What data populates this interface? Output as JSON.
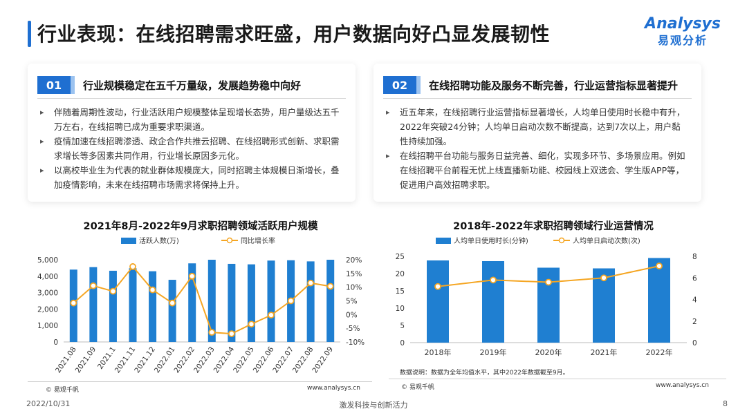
{
  "header": {
    "title": "行业表现：在线招聘需求旺盛，用户数据向好凸显发展韧性",
    "logo_en": "Analysys",
    "logo_cn": "易观分析"
  },
  "cards": [
    {
      "num": "01",
      "title": "行业规模稳定在五千万量级，发展趋势稳中向好",
      "bullets": [
        "伴随着周期性波动，行业活跃用户规模整体呈现增长态势，用户量级达五千万左右，在线招聘已成为重要求职渠道。",
        "疫情加速在线招聘渗透、政企合作共推云招聘、在线招聘形式创新、求职需求增长等多因素共同作用，行业增长原因多元化。",
        "以高校毕业生为代表的就业群体规模庞大，同时招聘主体规模日渐增长，叠加疫情影响，未来在线招聘市场需求将保持上升。"
      ]
    },
    {
      "num": "02",
      "title": "在线招聘功能及服务不断完善，行业运营指标显著提升",
      "bullets": [
        "近五年来，在线招聘行业运营指标显著增长，人均单日使用时长稳中有升，2022年突破24分钟；人均单日启动次数不断提高，达到7次以上，用户黏性持续加强。",
        "在线招聘平台功能与服务日益完善、细化，实现多环节、多场景应用。例如在线招聘平台前程无忧上线直播新功能、校园线上双选会、学生版APP等，促进用户高效招聘求职。"
      ]
    }
  ],
  "chart_data": [
    {
      "type": "bar+line",
      "title": "2021年8月-2022年9月求职招聘领域活跃用户规模",
      "categories": [
        "2021.08",
        "2021.09",
        "2021.1",
        "2021.11",
        "2021.12",
        "2022.01",
        "2022.02",
        "2022.03",
        "2022.04",
        "2022.05",
        "2022.06",
        "2022.07",
        "2022.08",
        "2022.09"
      ],
      "series": [
        {
          "name": "活跃人数(万)",
          "type": "bar",
          "axis": "left",
          "color": "#1f7fd1",
          "values": [
            4400,
            4550,
            4330,
            4480,
            4300,
            3780,
            4780,
            5000,
            4750,
            4720,
            4950,
            4970,
            4900,
            5000
          ]
        },
        {
          "name": "同比增长率",
          "type": "line",
          "axis": "right",
          "color": "#f5a623",
          "values": [
            4.2,
            10.5,
            8.5,
            17.5,
            9.0,
            4.2,
            14.0,
            -6.5,
            -7.0,
            -3.5,
            -0.2,
            5.0,
            11.5,
            10.3
          ]
        }
      ],
      "left_axis": {
        "min": 0,
        "max": 5000,
        "ticks": [
          "0",
          "1,000",
          "2,000",
          "3,000",
          "4,000",
          "5,000"
        ]
      },
      "right_axis": {
        "min": -10,
        "max": 20,
        "ticks": [
          "-10%",
          "-5%",
          "0%",
          "5%",
          "10%",
          "15%",
          "20%"
        ]
      },
      "source": "© 易观千帆",
      "site": "www.analysys.cn"
    },
    {
      "type": "bar+line",
      "title": "2018年-2022年求职招聘领域行业运营情况",
      "categories": [
        "2018年",
        "2019年",
        "2020年",
        "2021年",
        "2022年"
      ],
      "series": [
        {
          "name": "人均单日使用时长(分钟)",
          "type": "bar",
          "axis": "left",
          "color": "#1f7fd1",
          "values": [
            23.8,
            23.6,
            21.7,
            21.5,
            24.5
          ]
        },
        {
          "name": "人均单日启动次数(次)",
          "type": "line",
          "axis": "right",
          "color": "#f5a623",
          "values": [
            5.2,
            5.8,
            5.6,
            6.0,
            7.1
          ]
        }
      ],
      "left_axis": {
        "min": 0,
        "max": 25,
        "ticks": [
          "0",
          "5",
          "10",
          "15",
          "20",
          "25"
        ]
      },
      "right_axis": {
        "min": 0,
        "max": 8,
        "ticks": [
          "0",
          "2",
          "4",
          "6",
          "8"
        ]
      },
      "note": "数据说明：数据为全年均值水平，其中2022年数据截至9月。",
      "source": "© 易观千帆",
      "site": "www.analysys.cn"
    }
  ],
  "footer": {
    "date": "2022/10/31",
    "slogan": "激发科技与创新活力",
    "page": "8"
  }
}
